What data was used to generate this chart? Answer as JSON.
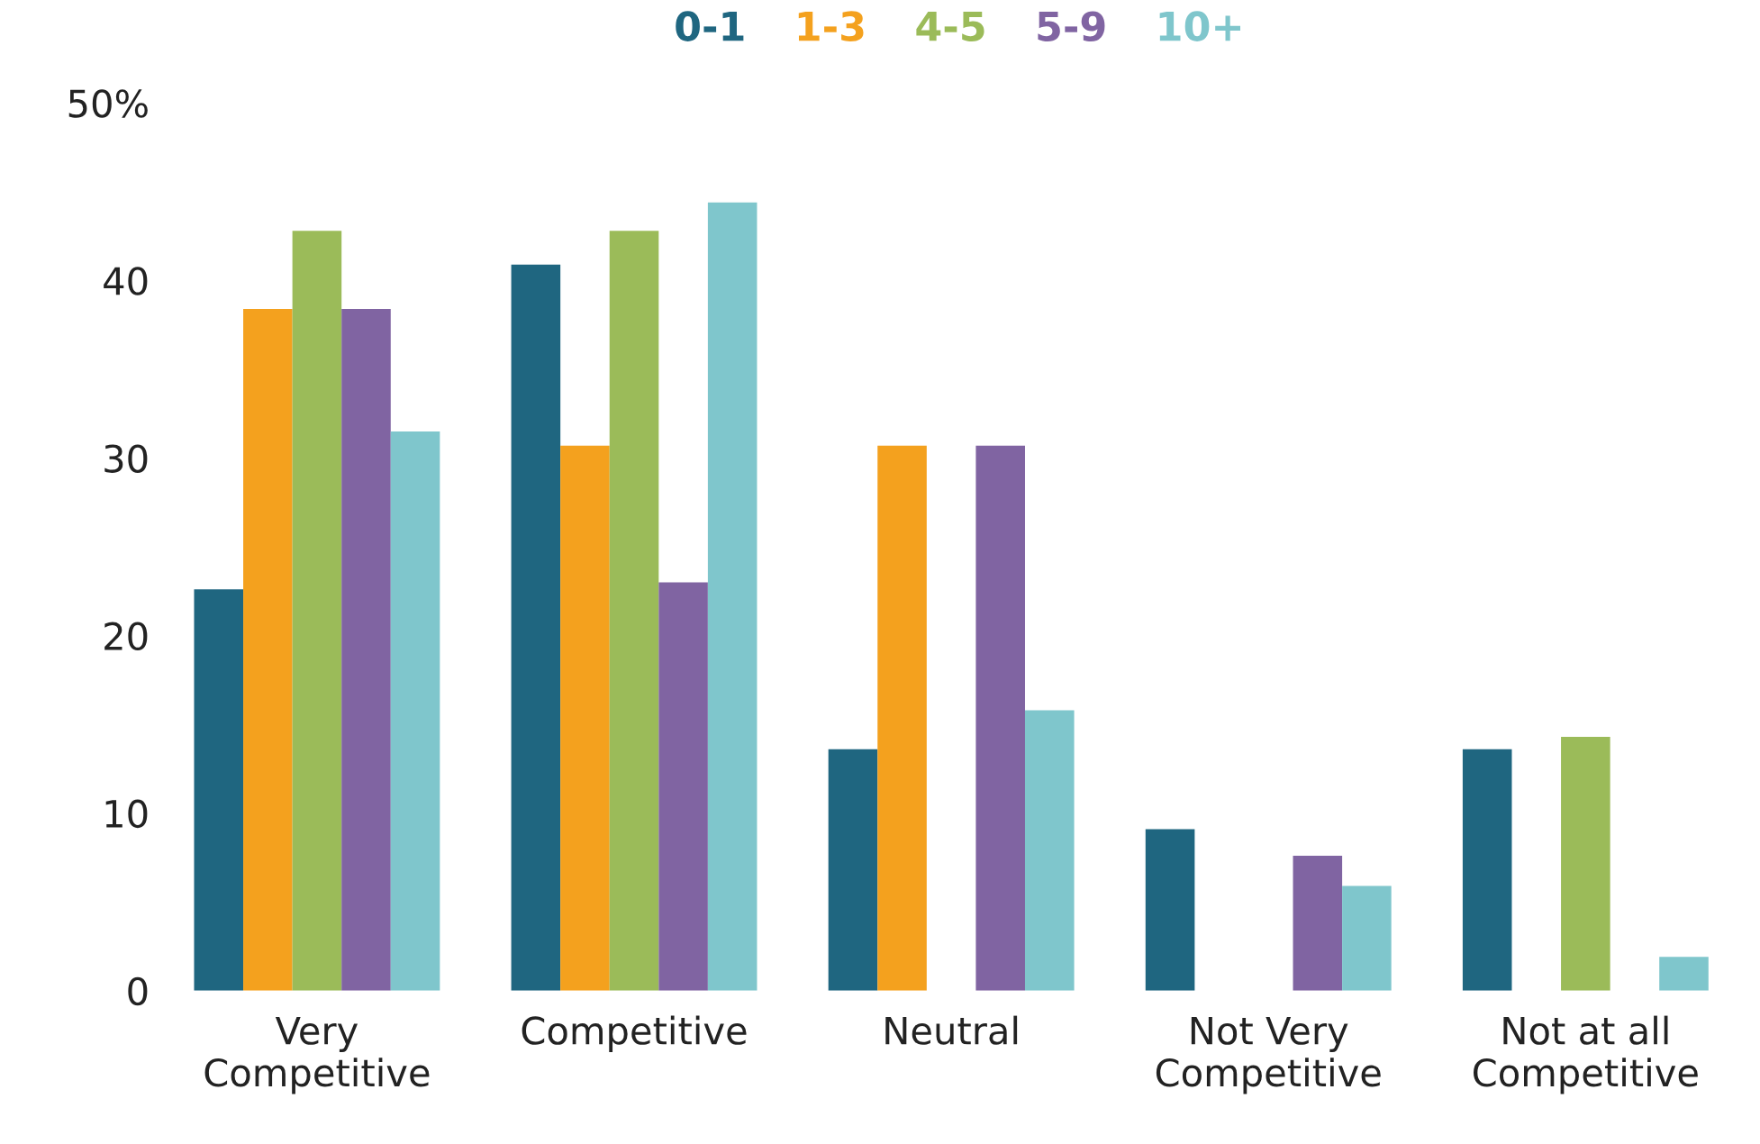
{
  "chart_data": {
    "type": "bar",
    "categories": [
      "Very\nCompetitive",
      "Competitive",
      "Neutral",
      "Not Very\nCompetitive",
      "Not at all\nCompetitive"
    ],
    "series": [
      {
        "name": "0-1",
        "color": "#1f6680",
        "values": [
          22.6,
          40.9,
          13.6,
          9.1,
          13.6
        ]
      },
      {
        "name": "1-3",
        "color": "#f4a11e",
        "values": [
          38.4,
          30.7,
          30.7,
          0,
          0
        ]
      },
      {
        "name": "4-5",
        "color": "#9bbb59",
        "values": [
          42.8,
          42.8,
          0,
          0,
          14.3
        ]
      },
      {
        "name": "5-9",
        "color": "#8064a2",
        "values": [
          38.4,
          23.0,
          30.7,
          7.6,
          0
        ]
      },
      {
        "name": "10+",
        "color": "#7fc6cc",
        "values": [
          31.5,
          44.4,
          15.8,
          5.9,
          1.9
        ]
      }
    ],
    "ylim": [
      0,
      50
    ],
    "yticks": [
      0,
      10,
      20,
      30,
      40,
      {
        "value": 50,
        "label": "50%"
      }
    ],
    "grid": false,
    "legend": "top"
  }
}
